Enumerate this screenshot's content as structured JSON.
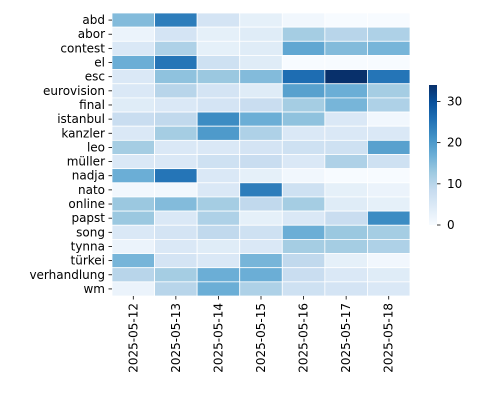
{
  "chart_data": {
    "type": "heatmap",
    "title": "",
    "xlabel": "",
    "ylabel": "",
    "colormap": "Blues",
    "x_categories": [
      "2025-05-12",
      "2025-05-13",
      "2025-05-14",
      "2025-05-15",
      "2025-05-16",
      "2025-05-17",
      "2025-05-18"
    ],
    "y_categories": [
      "abd",
      "abor",
      "contest",
      "el",
      "esc",
      "eurovision",
      "final",
      "istanbul",
      "kanzler",
      "leo",
      "müller",
      "nadja",
      "nato",
      "online",
      "papst",
      "song",
      "tynna",
      "türkei",
      "verhandlung",
      "wm"
    ],
    "values": [
      [
        15,
        24,
        6,
        3,
        1,
        0,
        0
      ],
      [
        2,
        6,
        3,
        4,
        12,
        10,
        11
      ],
      [
        5,
        11,
        3,
        4,
        18,
        15,
        16
      ],
      [
        17,
        25,
        7,
        4,
        0,
        0,
        0
      ],
      [
        5,
        14,
        13,
        15,
        26,
        34,
        25
      ],
      [
        5,
        10,
        6,
        4,
        19,
        17,
        12
      ],
      [
        4,
        5,
        6,
        8,
        12,
        16,
        11
      ],
      [
        8,
        9,
        22,
        17,
        14,
        5,
        1
      ],
      [
        5,
        12,
        20,
        11,
        5,
        5,
        5
      ],
      [
        12,
        5,
        5,
        6,
        7,
        7,
        19
      ],
      [
        5,
        5,
        7,
        8,
        5,
        11,
        7
      ],
      [
        17,
        25,
        5,
        3,
        1,
        0,
        0
      ],
      [
        1,
        1,
        5,
        24,
        7,
        3,
        2
      ],
      [
        13,
        15,
        12,
        9,
        12,
        4,
        3
      ],
      [
        13,
        5,
        11,
        3,
        5,
        8,
        22
      ],
      [
        5,
        6,
        9,
        7,
        17,
        13,
        12
      ],
      [
        2,
        5,
        4,
        5,
        12,
        12,
        11
      ],
      [
        16,
        6,
        5,
        16,
        9,
        3,
        1
      ],
      [
        10,
        12,
        17,
        17,
        8,
        5,
        4
      ],
      [
        2,
        10,
        17,
        11,
        7,
        6,
        5
      ]
    ],
    "colorbar": {
      "min": 0,
      "max": 34,
      "ticks": [
        0,
        10,
        20,
        30
      ]
    },
    "grid": false,
    "cell_border_color": "#ffffff",
    "legend": "colorbar-right"
  }
}
